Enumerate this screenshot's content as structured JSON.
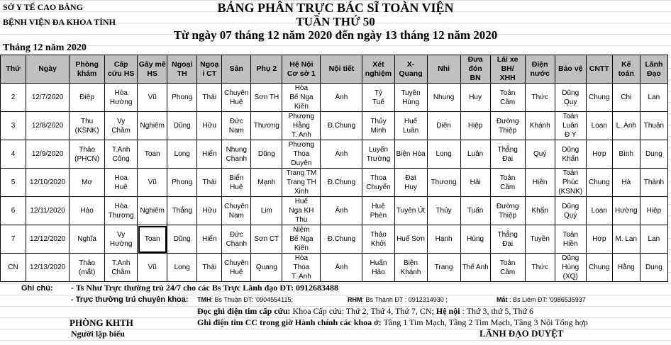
{
  "header": {
    "org_line1": "SỞ Y TẾ CAO BẰNG",
    "org_line2": "BỆNH VIỆN ĐA KHOA TỈNH",
    "title": "BẢNG PHÂN TRỰC BÁC SĨ TOÀN VIỆN",
    "week": "TUẦN THỨ 50",
    "date_range": "Từ ngày 07 tháng 12 năm 2020 đến ngày 13 tháng 12 năm 2020",
    "month": "Tháng 12 năm 2020"
  },
  "table": {
    "columns": [
      "Thứ",
      "Ngày",
      "Phòng\nkhám",
      "Cấp\ncứu HS",
      "Gây mê\nHS",
      "Ngoại\nTH",
      "Ngoạ\ni CT",
      "Sản",
      "Phụ 2",
      "Hệ Nội\nCơ sở 1",
      "Nội tiết",
      "Xét\nnghiệm",
      "X-\nQuang",
      "Nhi",
      "Đưa\nđón\nBN",
      "Lái xe\nBH/\nXHH",
      "Điện\nnước",
      "Bảo vệ",
      "CNTT",
      "Kế\ntoán",
      "Lãnh\nĐạo"
    ],
    "rows": [
      [
        "2",
        "12/7/2020",
        "Điệp",
        "Hòa\nHường",
        "Vũ",
        "Phong",
        "Thái",
        "Chuyên\nHuệ",
        "Sơn TH",
        "Hòa\nBế Nga\nKiên",
        "Ánh",
        "Tý\nTuế",
        "Tuyên\nHùng",
        "Nhung",
        "Huy",
        "Toản\nCầm",
        "Thức",
        "Dũng\nQuy",
        "Chung",
        "Chi",
        "Lan"
      ],
      [
        "3",
        "12/8/2020",
        "Thu\n(KSNK)",
        "Vy\nChâm",
        "Nghiêm",
        "Dũng",
        "Hữu",
        "Đức\nNam",
        "Thương",
        "Phượng\nHằng\nT. Anh",
        "Đ.Chung",
        "Thủy\nMinh",
        "Huế Luân",
        "Diên",
        "Hiệp",
        "Đường\nThiệp",
        "Khánh",
        "Toản\nLuân\nĐ Y",
        "Loan",
        "L. Anh",
        "Thuận"
      ],
      [
        "4",
        "12/9/2020",
        "Thảo\n(PHCN)",
        "T.Anh\nCông",
        "Toan",
        "Long",
        "Hiển",
        "Nhung\nChanh",
        "Dũng",
        "Phương\nThoa\nDuyên",
        "Ánh",
        "Luyến\nTrường",
        "Biện Hòa",
        "Long",
        "Luân",
        "Thắng\nĐại",
        "Quý",
        "Dũng\nKhấn",
        "Hợp",
        "Bình",
        "Dung"
      ],
      [
        "5",
        "12/10/2020",
        "Mơ",
        "Hoa\nHuệ",
        "Vũ",
        "Phong",
        "Thái",
        "Biển\nHuệ",
        "Mạnh",
        "Trang TM\nTrang TH\nXinh",
        "Đ.Chung",
        "Thoa\nChuyển",
        "Đạt\nHuy",
        "Thương",
        "Hải",
        "Toản\nCầm",
        "Hiền",
        "Toản\nPhúc\n(KSNK)",
        "Chung",
        "Hà",
        "Thành"
      ],
      [
        "6",
        "12/11/2020",
        "Hảo",
        "Hòa\nThương",
        "Nghiêm",
        "Thắng",
        "Hữu",
        "Chuyên\nNam",
        "Lim",
        "Huế\nNga KH\nThu",
        "Ánh",
        "Huệ\nPhèn",
        "Tuyên Út",
        "Thủy",
        "Tuấn",
        "Đường\nThiệp",
        "Khẩn",
        "Dũng\nQuý",
        "Loan",
        "Hường",
        "Hiệp"
      ],
      [
        "7",
        "12/12/2020",
        "Nghĩa",
        "Vy\nHường",
        "Toan",
        "Dũng",
        "Hiển",
        "Đức\nChanh",
        "Sơn CT",
        "Niệm\nBế Nga\nKiên",
        "Đ.Chung",
        "Thảo\nKhởi",
        "Huế Sơn",
        "Hạnh",
        "Hùng",
        "Thắng\nĐại",
        "Tuyền",
        "Toản\nHiền",
        "Hợp",
        "M. Lan",
        "Lan"
      ],
      [
        "CN",
        "12/13/2020",
        "Thảo\n(mắt)",
        "T.Anh\nChâm",
        "Vũ",
        "Long",
        "Thái",
        "Chuyên\nHuệ",
        "Quang",
        "Hòa\nThoa\nT. Anh",
        "Ánh",
        "Huấn\nHảo",
        "Biện\nKhánh",
        "Trang",
        "Thế Anh",
        "Toản\nCầm",
        "Thức",
        "Dũng\nHùng\n(XQ)",
        "Chung",
        "Hằng",
        "Dung"
      ]
    ]
  },
  "notes": {
    "label": "Ghi chú:",
    "line1": "- Ts Như Trực thường trú 24/7 cho các Bs Trực Lãnh đạo  ĐT:  0912683488",
    "line2": "- Trực thường trú chuyên khoa:",
    "tmh_label": "TMH",
    "tmh_text": ": Bs Thuận ĐT: '0904554115;",
    "rhm_label": "RHM",
    "rhm_text": ": Bs Thành ĐT : 0912314930 ;",
    "mat_label": "Mắt",
    "mat_text": "  : Bs Liêm ĐT:  '0986535937",
    "ecg1_a": "Đọc ghi điện tim cấp cứu:",
    "ecg1_b": " Khoa Cấp cứu: Thứ 2, Thứ 4, Thứ 7, CN; ",
    "ecg1_c": "Hệ nội",
    "ecg1_d": " : Thứ 3, thứ 5, Thứ 6",
    "ecg2_a": "Ghi điện tim CC trong giờ Hành chính các khoa ở:",
    "ecg2_b": " Tầng 1 Tim Mạch, Tầng 2 Tim Mạch, Tầng 3 Nội Tổng hợp"
  },
  "footer": {
    "dept": "PHÒNG KHTH",
    "preparer": "Người lập biểu",
    "approver": "LÃNH ĐẠO DUYỆT"
  }
}
